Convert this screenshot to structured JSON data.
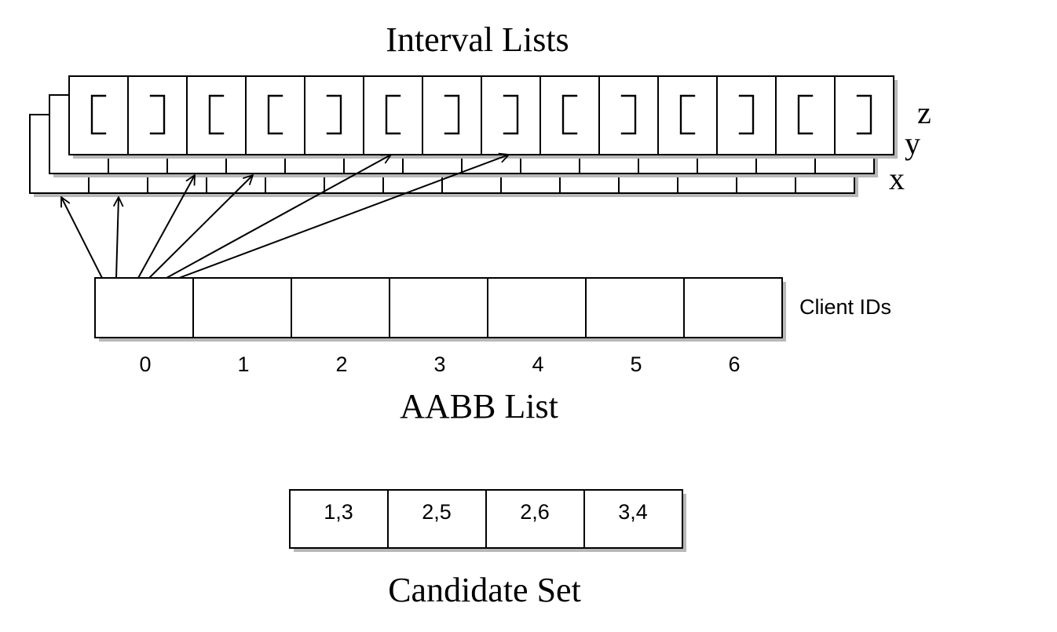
{
  "interval_lists": {
    "title": "Interval Lists",
    "axes": [
      "z",
      "y",
      "x"
    ],
    "endpoints": [
      "[",
      "]",
      "[",
      "[",
      "]",
      "[",
      "]",
      "]",
      "[",
      "]",
      "[",
      "]",
      "[",
      "]"
    ]
  },
  "aabb_list": {
    "title": "AABB List",
    "side_label": "Client IDs",
    "indices": [
      "0",
      "1",
      "2",
      "3",
      "4",
      "5",
      "6"
    ]
  },
  "candidate_set": {
    "title": "Candidate Set",
    "pairs": [
      "1,3",
      "2,5",
      "2,6",
      "3,4"
    ]
  }
}
